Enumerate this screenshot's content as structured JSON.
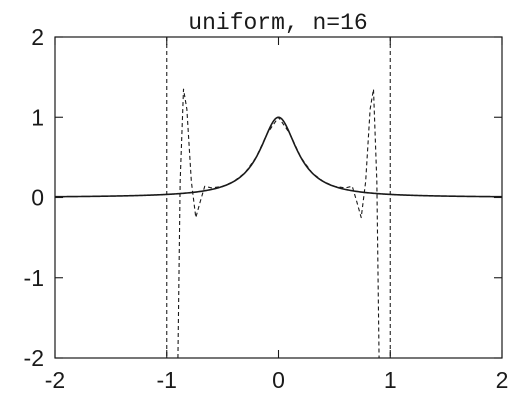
{
  "chart_data": {
    "type": "line",
    "title": "uniform, n=16",
    "xlabel": "",
    "ylabel": "",
    "xlim": [
      -2,
      2
    ],
    "ylim": [
      -2,
      2
    ],
    "xticks": [
      -2,
      -1,
      0,
      1,
      2
    ],
    "yticks": [
      -2,
      -1,
      0,
      1,
      2
    ],
    "xtick_labels": [
      "-2",
      "-1",
      "0",
      "1",
      "2"
    ],
    "ytick_labels": [
      "-2",
      "-1",
      "0",
      "1",
      "2"
    ],
    "grid": false,
    "legend": "none",
    "vlines": [
      -1,
      1
    ],
    "series": [
      {
        "style": "solid",
        "function": "1/(1+25x^2)",
        "x": [
          -2,
          -1.5,
          -1,
          -0.8,
          -0.6,
          -0.5,
          -0.4,
          -0.3,
          -0.2,
          -0.1,
          0,
          0.1,
          0.2,
          0.3,
          0.4,
          0.5,
          0.6,
          0.8,
          1,
          1.5,
          2
        ],
        "y": [
          0.0099,
          0.0175,
          0.0385,
          0.0588,
          0.1,
          0.1379,
          0.2,
          0.3077,
          0.5,
          0.8,
          1,
          0.8,
          0.5,
          0.3077,
          0.2,
          0.1379,
          0.1,
          0.0588,
          0.0385,
          0.0175,
          0.0099
        ]
      },
      {
        "style": "dashed",
        "description_of_shape": "interpolant",
        "x": [
          -0.9,
          -0.88,
          -0.85,
          -0.82,
          -0.78,
          -0.74,
          -0.7,
          -0.66,
          -0.6,
          -0.5,
          -0.4,
          -0.3,
          -0.2,
          -0.1,
          0,
          0.1,
          0.2,
          0.3,
          0.4,
          0.5,
          0.6,
          0.66,
          0.7,
          0.74,
          0.78,
          0.82,
          0.85,
          0.88,
          0.9
        ],
        "y": [
          -2,
          0.2,
          1.35,
          1.1,
          0.2,
          -0.25,
          -0.05,
          0.14,
          0.12,
          0.1379,
          0.2,
          0.3077,
          0.5,
          0.8,
          1,
          0.8,
          0.5,
          0.3077,
          0.2,
          0.1379,
          0.12,
          0.14,
          -0.05,
          -0.25,
          0.2,
          1.1,
          1.35,
          0.2,
          -2
        ]
      }
    ]
  }
}
